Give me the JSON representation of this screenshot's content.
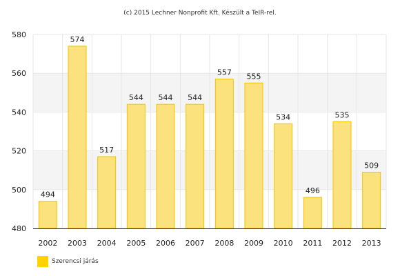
{
  "chart_data": {
    "type": "bar",
    "title": "(c) 2015 Lechner Nonprofit Kft. Készült a TeIR-rel.",
    "categories": [
      "2002",
      "2003",
      "2004",
      "2005",
      "2006",
      "2007",
      "2008",
      "2009",
      "2010",
      "2011",
      "2012",
      "2013"
    ],
    "series": [
      {
        "name": "Szerencsi járás",
        "values": [
          494,
          574,
          517,
          544,
          544,
          544,
          557,
          555,
          534,
          496,
          535,
          509
        ],
        "color": "#FFD200"
      }
    ],
    "ylim": [
      480,
      580
    ],
    "yticks": [
      480,
      500,
      520,
      540,
      560,
      580
    ],
    "grid": true,
    "legend_position": "bottom-left",
    "colors": {
      "bar_fill": "#FCE27D",
      "bar_stroke": "#F2C400",
      "band": "#F4F4F4"
    }
  }
}
